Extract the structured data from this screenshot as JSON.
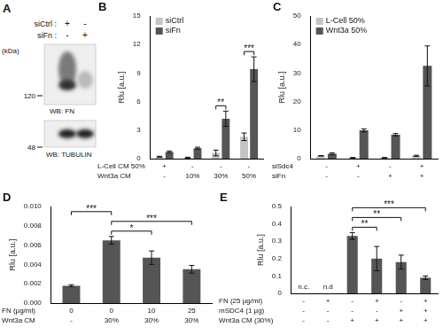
{
  "blot": {
    "title": "A",
    "rows": [
      {
        "label": "siCtrl :",
        "lanes": [
          "+",
          "-"
        ]
      },
      {
        "label": "siFn :",
        "lanes": [
          "-",
          "+"
        ]
      }
    ],
    "unit": "(kDa)",
    "markers": [
      120,
      48
    ],
    "panels": [
      "WB: FN",
      "WB: TUBULIN"
    ]
  },
  "chart_data": [
    {
      "type": "bar",
      "title": "B",
      "y_label": "Rlu [a.u.]",
      "ylim": [
        0,
        15
      ],
      "yticks": [
        0,
        3,
        6,
        9,
        12,
        15
      ],
      "grid": false,
      "legend": "upper left",
      "conditions": [
        {
          "label": "L-Cell CM 50%",
          "values": [
            "+",
            "-",
            "-",
            "-"
          ]
        },
        {
          "label": "Wnt3a CM",
          "values": [
            "-",
            "10%",
            "30%",
            "50%"
          ]
        }
      ],
      "series": [
        {
          "name": "siCtrl",
          "color": "#c4c4c4",
          "values": [
            0.2,
            0.1,
            0.6,
            2.3
          ],
          "errors": [
            0.05,
            0.05,
            0.3,
            0.4
          ]
        },
        {
          "name": "siFn",
          "color": "#555555",
          "values": [
            0.7,
            1.1,
            4.2,
            9.4
          ],
          "errors": [
            0.1,
            0.1,
            0.8,
            1.3
          ]
        }
      ],
      "significance": [
        {
          "category": 2,
          "label": "**"
        },
        {
          "category": 3,
          "label": "***"
        }
      ]
    },
    {
      "type": "bar",
      "title": "C",
      "y_label": "Rlu [a.u.]",
      "ylim": [
        0,
        50
      ],
      "yticks": [
        0,
        10,
        20,
        30,
        40,
        50
      ],
      "grid": false,
      "legend": "upper left",
      "conditions": [
        {
          "label": "siSdc4",
          "values": [
            "-",
            "+",
            "-",
            "+"
          ]
        },
        {
          "label": "siFn",
          "values": [
            "-",
            "-",
            "+",
            "+"
          ]
        }
      ],
      "series": [
        {
          "name": "L-Cell 50%",
          "color": "#c4c4c4",
          "values": [
            1.0,
            0.3,
            0.3,
            1.0
          ],
          "errors": [
            0.1,
            0.1,
            0.1,
            0.2
          ]
        },
        {
          "name": "Wnt3a 50%",
          "color": "#555555",
          "values": [
            1.7,
            9.9,
            8.4,
            32.5
          ],
          "errors": [
            0.3,
            0.5,
            0.4,
            7.0
          ]
        }
      ]
    },
    {
      "type": "bar",
      "title": "D",
      "y_label": "Rlu [a.u.]",
      "ylim": [
        0,
        0.01
      ],
      "yticks": [
        {
          "value": 0,
          "label": "0.000"
        },
        {
          "value": 0.002,
          "label": "0.002"
        },
        {
          "value": 0.004,
          "label": "0.004"
        },
        {
          "value": 0.006,
          "label": "0.006"
        },
        {
          "value": 0.008,
          "label": "0.008"
        },
        {
          "value": 0.01,
          "label": "0.010"
        }
      ],
      "grid": false,
      "color": "#555555",
      "conditions": [
        {
          "label": "FN (µg/ml)",
          "values": [
            "0",
            "0",
            "10",
            "25"
          ]
        },
        {
          "label": "Wnt3a CM",
          "values": [
            "-",
            "30%",
            "30%",
            "30%"
          ]
        }
      ],
      "values": [
        0.0018,
        0.0065,
        0.0047,
        0.0035
      ],
      "errors": [
        0.0001,
        0.0004,
        0.0007,
        0.0004
      ],
      "significance": [
        {
          "from": 1,
          "to": 2,
          "label": "*"
        },
        {
          "from": 1,
          "to": 3,
          "label": "***"
        },
        {
          "from": 0,
          "to": 1,
          "label": "***"
        }
      ]
    },
    {
      "type": "bar",
      "title": "E",
      "y_label": "Rlu [a.u.]",
      "ylim": [
        0,
        0.5
      ],
      "yticks": [
        0,
        0.1,
        0.2,
        0.3,
        0.4,
        0.5
      ],
      "grid": false,
      "color": "#555555",
      "conditions": [
        {
          "label": "FN (25 µg/ml)",
          "values": [
            "-",
            "+",
            "-",
            "+",
            "-",
            "+"
          ]
        },
        {
          "label": "mSDC4 (1 µg)",
          "values": [
            "-",
            "-",
            "-",
            "-",
            "+",
            "+"
          ]
        },
        {
          "label": "Wnt3a CM (30%)",
          "values": [
            "-",
            "-",
            "+",
            "+",
            "+",
            "+"
          ]
        }
      ],
      "values": [
        null,
        null,
        0.33,
        0.2,
        0.18,
        0.09
      ],
      "errors": [
        null,
        null,
        0.02,
        0.07,
        0.04,
        0.01
      ],
      "annotations": [
        {
          "index": 0,
          "text": "n.c."
        },
        {
          "index": 1,
          "text": "n.d"
        }
      ],
      "significance": [
        {
          "from": 2,
          "to": 3,
          "label": "**"
        },
        {
          "from": 2,
          "to": 4,
          "label": "**"
        },
        {
          "from": 2,
          "to": 5,
          "label": "***"
        }
      ]
    }
  ]
}
